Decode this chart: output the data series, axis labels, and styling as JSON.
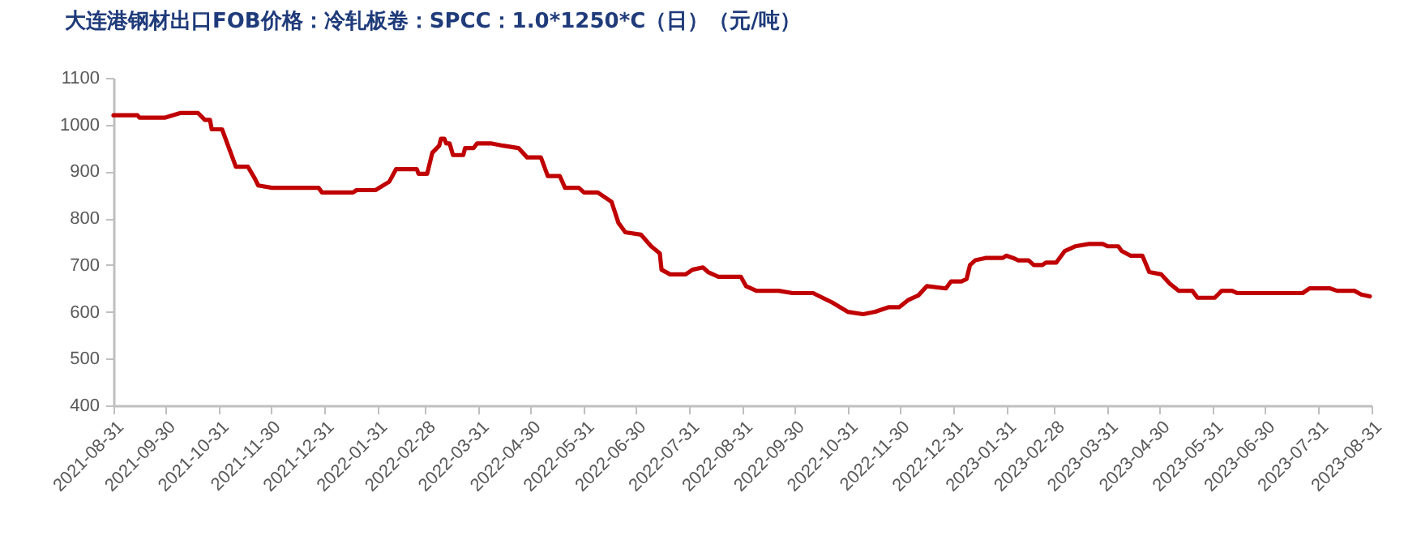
{
  "chart_data": {
    "type": "line",
    "title": "大连港钢材出口FOB价格：冷轧板卷：SPCC：1.0*1250*C（日）（元/吨）",
    "x": [
      "2021-08-31",
      "2021-09-14",
      "2021-09-15",
      "2021-09-30",
      "2021-10-09",
      "2021-10-19",
      "2021-10-23",
      "2021-10-26",
      "2021-10-27",
      "2021-11-02",
      "2021-11-10",
      "2021-11-17",
      "2021-11-21",
      "2021-11-23",
      "2021-12-01",
      "2021-12-28",
      "2021-12-30",
      "2022-01-17",
      "2022-01-19",
      "2022-01-30",
      "2022-02-07",
      "2022-02-11",
      "2022-02-23",
      "2022-02-24",
      "2022-03-01",
      "2022-03-04",
      "2022-03-08",
      "2022-03-09",
      "2022-03-11",
      "2022-03-12",
      "2022-03-14",
      "2022-03-16",
      "2022-03-22",
      "2022-03-23",
      "2022-03-28",
      "2022-03-30",
      "2022-04-07",
      "2022-04-14",
      "2022-04-23",
      "2022-04-28",
      "2022-05-06",
      "2022-05-10",
      "2022-05-17",
      "2022-05-20",
      "2022-05-28",
      "2022-05-31",
      "2022-06-08",
      "2022-06-16",
      "2022-06-20",
      "2022-06-24",
      "2022-07-03",
      "2022-07-09",
      "2022-07-14",
      "2022-07-15",
      "2022-07-20",
      "2022-07-29",
      "2022-08-02",
      "2022-08-08",
      "2022-08-11",
      "2022-08-17",
      "2022-08-30",
      "2022-09-02",
      "2022-09-08",
      "2022-09-21",
      "2022-09-29",
      "2022-10-11",
      "2022-10-22",
      "2022-10-31",
      "2022-11-09",
      "2022-11-16",
      "2022-11-24",
      "2022-11-30",
      "2022-12-05",
      "2022-12-11",
      "2022-12-16",
      "2022-12-27",
      "2022-12-30",
      "2023-01-05",
      "2023-01-08",
      "2023-01-10",
      "2023-01-13",
      "2023-01-19",
      "2023-01-29",
      "2023-01-31",
      "2023-02-04",
      "2023-02-07",
      "2023-02-13",
      "2023-02-16",
      "2023-02-21",
      "2023-02-23",
      "2023-03-01",
      "2023-03-06",
      "2023-03-12",
      "2023-03-20",
      "2023-03-28",
      "2023-03-31",
      "2023-04-06",
      "2023-04-08",
      "2023-04-13",
      "2023-04-20",
      "2023-04-24",
      "2023-05-01",
      "2023-05-06",
      "2023-05-11",
      "2023-05-19",
      "2023-05-22",
      "2023-06-01",
      "2023-06-05",
      "2023-06-11",
      "2023-06-14",
      "2023-07-22",
      "2023-07-26",
      "2023-08-07",
      "2023-08-11",
      "2023-08-21",
      "2023-08-25",
      "2023-08-30"
    ],
    "series": [
      {
        "color": "#c00000",
        "values": [
          1020,
          1020,
          1015,
          1015,
          1025,
          1025,
          1010,
          1010,
          990,
          990,
          910,
          910,
          885,
          870,
          865,
          865,
          855,
          855,
          860,
          860,
          878,
          905,
          905,
          895,
          895,
          940,
          955,
          970,
          970,
          960,
          960,
          935,
          935,
          950,
          950,
          960,
          960,
          955,
          950,
          930,
          930,
          890,
          890,
          865,
          865,
          855,
          855,
          835,
          790,
          770,
          765,
          740,
          725,
          690,
          680,
          680,
          690,
          695,
          685,
          675,
          675,
          655,
          645,
          645,
          640,
          640,
          620,
          600,
          595,
          600,
          610,
          610,
          625,
          635,
          655,
          650,
          665,
          665,
          670,
          700,
          710,
          715,
          715,
          720,
          715,
          710,
          710,
          700,
          700,
          705,
          705,
          730,
          740,
          745,
          745,
          740,
          740,
          730,
          720,
          720,
          685,
          680,
          660,
          645,
          645,
          630,
          630,
          645,
          645,
          640,
          640,
          650,
          650,
          645,
          645,
          637,
          633
        ]
      }
    ],
    "xlim": [
      "2021-08-31",
      "2023-08-31"
    ],
    "xticks": [
      "2021-08-31",
      "2021-09-30",
      "2021-10-31",
      "2021-11-30",
      "2021-12-31",
      "2022-01-31",
      "2022-02-28",
      "2022-03-31",
      "2022-04-30",
      "2022-05-31",
      "2022-06-30",
      "2022-07-31",
      "2022-08-31",
      "2022-09-30",
      "2022-10-31",
      "2022-11-30",
      "2022-12-31",
      "2023-01-31",
      "2023-02-28",
      "2023-03-31",
      "2023-04-30",
      "2023-05-31",
      "2023-06-30",
      "2023-07-31",
      "2023-08-31"
    ],
    "ylim": [
      400,
      1100
    ],
    "yticks": [
      400,
      500,
      600,
      700,
      800,
      900,
      1000,
      1100
    ]
  }
}
